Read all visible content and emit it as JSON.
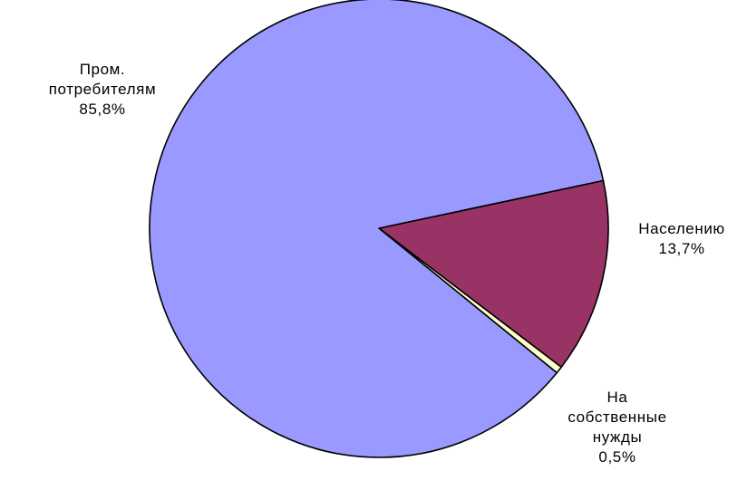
{
  "chart_data": {
    "type": "pie",
    "title": "",
    "slices": [
      {
        "label_lines": [
          "Населению"
        ],
        "percent_label": "13,7%",
        "value": 13.7,
        "color": "#993366"
      },
      {
        "label_lines": [
          "На",
          "собственные",
          "нужды"
        ],
        "percent_label": "0,5%",
        "value": 0.5,
        "color": "#FFFFCC"
      },
      {
        "label_lines": [
          "Пром.",
          "потребителям"
        ],
        "percent_label": "85,8%",
        "value": 85.8,
        "color": "#9999FF"
      }
    ],
    "start_angle_deg": -12,
    "direction": "clockwise",
    "legend": "none",
    "stroke_color": "#000000"
  }
}
